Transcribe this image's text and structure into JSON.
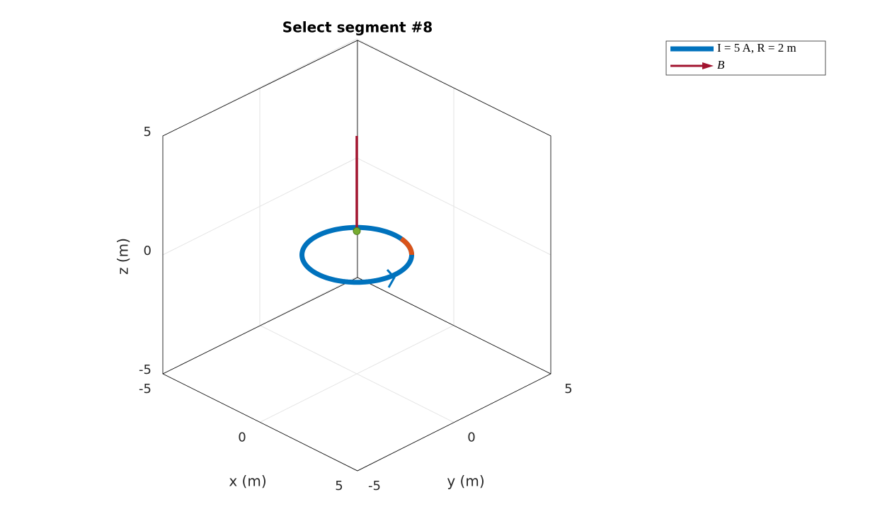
{
  "chart_data": {
    "type": "loop3d",
    "title": "Select segment #8",
    "xlabel": "x (m)",
    "ylabel": "y (m)",
    "zlabel": "z (m)",
    "xlim": [
      -5,
      5
    ],
    "ylim": [
      -5,
      5
    ],
    "zlim": [
      -5,
      5
    ],
    "xticks": [
      -5,
      0,
      5
    ],
    "yticks": [
      -5,
      0,
      5
    ],
    "zticks": [
      -5,
      0,
      5
    ],
    "grid": true,
    "legend_location": "northeastoutside",
    "loop": {
      "name": "I = 5 A, R = 2 m",
      "color": "#0072bd",
      "radius": 2,
      "z": 0
    },
    "highlight": {
      "color": "#d95319",
      "theta": [
        45,
        81
      ]
    },
    "point": {
      "color": "#77ac30",
      "x": 0,
      "y": 0,
      "z": 1
    },
    "vector": {
      "name": "B",
      "color": "#a2142f",
      "x": 0,
      "y": 0,
      "z": 1,
      "u": 0,
      "v": 0,
      "w": 4
    }
  }
}
